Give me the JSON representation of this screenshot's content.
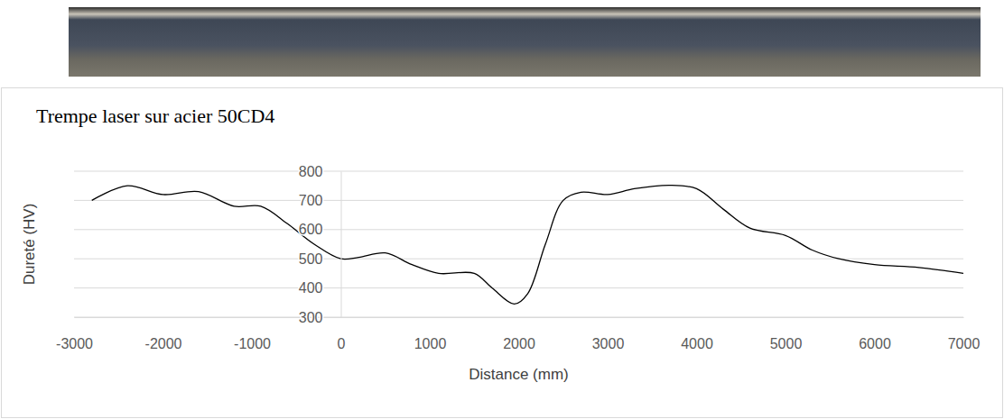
{
  "chart_data": {
    "type": "line",
    "title": "Trempe laser sur acier 50CD4",
    "x_label": "Distance (mm)",
    "y_label": "Dureté (HV)",
    "x": [
      -2800,
      -2400,
      -2000,
      -1600,
      -1200,
      -900,
      -600,
      -300,
      0,
      200,
      500,
      800,
      1100,
      1500,
      1700,
      1950,
      2100,
      2300,
      2500,
      2700,
      3000,
      3300,
      3700,
      4000,
      4300,
      4600,
      5000,
      5300,
      5600,
      6000,
      6500,
      7000
    ],
    "values": [
      700,
      750,
      720,
      730,
      680,
      680,
      620,
      550,
      500,
      505,
      520,
      480,
      450,
      450,
      400,
      345,
      380,
      550,
      700,
      728,
      720,
      740,
      752,
      740,
      670,
      605,
      580,
      530,
      500,
      480,
      470,
      450
    ],
    "color": "#000000",
    "xlim": [
      -3000,
      7000
    ],
    "xticks": [
      -3000,
      -2000,
      -1000,
      0,
      1000,
      2000,
      3000,
      4000,
      5000,
      6000,
      7000
    ],
    "ylim": [
      300,
      800
    ],
    "yticks": [
      300,
      400,
      500,
      600,
      700,
      800
    ],
    "grid": true
  }
}
